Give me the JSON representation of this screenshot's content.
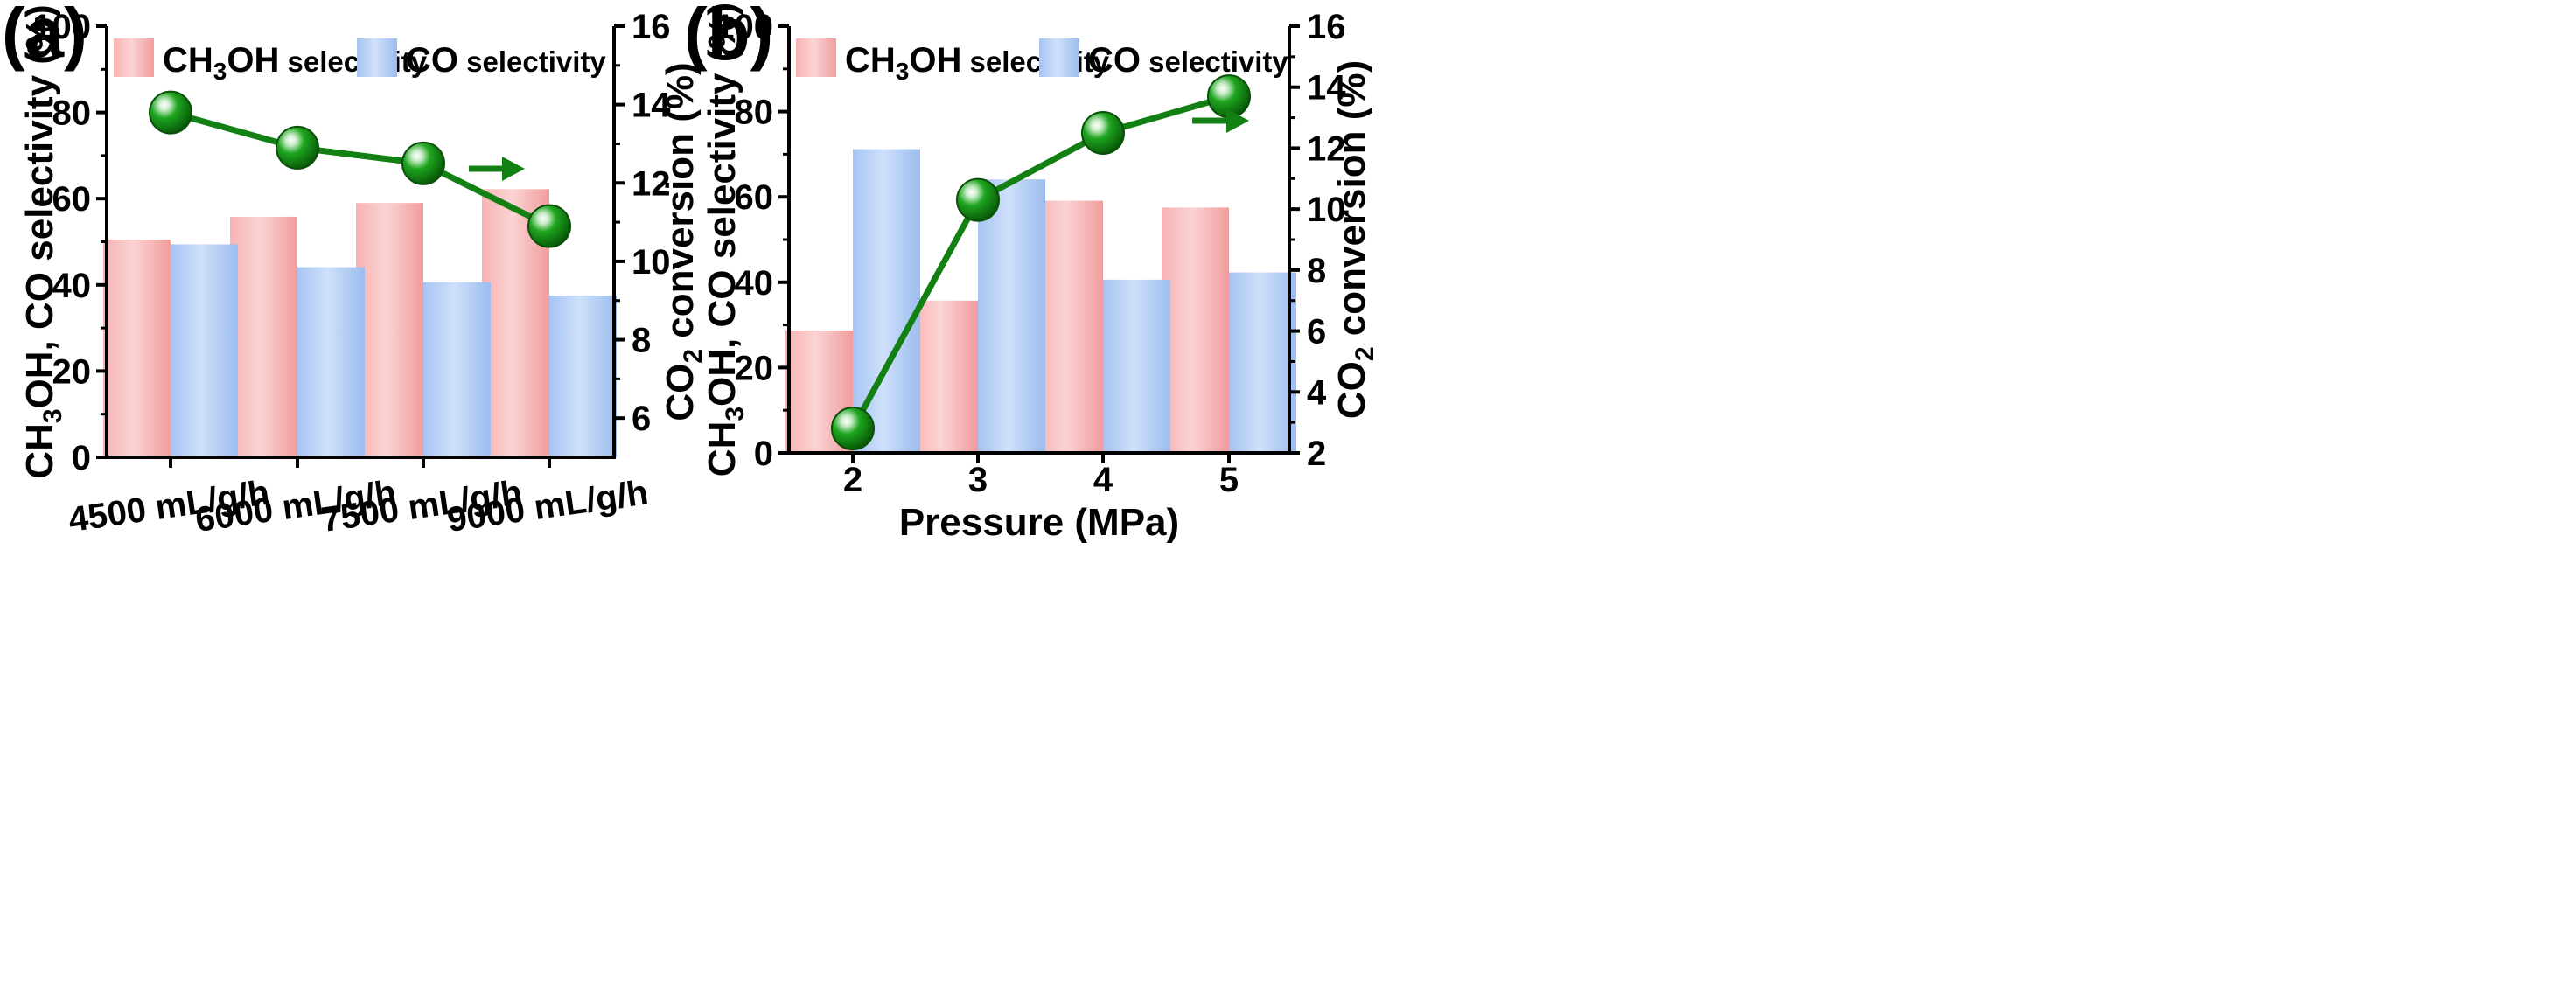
{
  "chart_data": [
    {
      "type": "bar",
      "panel_label": "(a)",
      "categories": [
        "4500 mL/g/h",
        "6000 mL/g/h",
        "7500 mL/g/h",
        "9000 mL/g/h"
      ],
      "series": [
        {
          "name": "CH3OH selectivity",
          "legend_main": "CH",
          "legend_sub": "3",
          "legend_rest": "OH",
          "legend_small": "selectivity",
          "axis": "left",
          "color": "#f4a3a3",
          "values": [
            50.5,
            55.8,
            59.0,
            62.2
          ]
        },
        {
          "name": "CO selectivity",
          "legend_main": "CO",
          "legend_small": "selectivity",
          "axis": "left",
          "color": "#a9c7f2",
          "values": [
            49.4,
            44.1,
            40.6,
            37.5
          ]
        }
      ],
      "line_series": {
        "name": "CO2 conversion",
        "axis": "right",
        "color": "#138013",
        "values": [
          13.8,
          12.9,
          12.5,
          10.9
        ]
      },
      "left_axis": {
        "label_parts": [
          "CH",
          "3",
          "OH, CO selectivity (%)"
        ],
        "ylim": [
          0,
          100
        ],
        "ticks": [
          0,
          20,
          40,
          60,
          80,
          100
        ]
      },
      "right_axis": {
        "label_parts": [
          "CO",
          "2",
          " conversion (%)"
        ],
        "ylim": [
          5,
          16
        ],
        "ticks": [
          6,
          8,
          10,
          12,
          14,
          16
        ]
      },
      "xlabel": "",
      "arrow": "right"
    },
    {
      "type": "bar",
      "panel_label": "(b)",
      "categories": [
        "2",
        "3",
        "4",
        "5"
      ],
      "series": [
        {
          "name": "CH3OH selectivity",
          "legend_main": "CH",
          "legend_sub": "3",
          "legend_rest": "OH",
          "legend_small": "selectivity",
          "axis": "left",
          "color": "#f4a3a3",
          "values": [
            28.7,
            35.7,
            59.1,
            57.5
          ]
        },
        {
          "name": "CO selectivity",
          "legend_main": "CO",
          "legend_small": "selectivity",
          "axis": "left",
          "color": "#a9c7f2",
          "values": [
            71.2,
            64.1,
            40.6,
            42.3
          ]
        }
      ],
      "line_series": {
        "name": "CO2 conversion",
        "axis": "right",
        "color": "#138013",
        "values": [
          2.8,
          10.3,
          12.5,
          13.7
        ]
      },
      "left_axis": {
        "label_parts": [
          "CH",
          "3",
          "OH, CO selectivity (%)"
        ],
        "ylim": [
          0,
          100
        ],
        "ticks": [
          0,
          20,
          40,
          60,
          80,
          100
        ]
      },
      "right_axis": {
        "label_parts": [
          "CO",
          "2",
          " conversion (%)"
        ],
        "ylim": [
          2,
          16
        ],
        "ticks": [
          2,
          4,
          6,
          8,
          10,
          12,
          14,
          16
        ]
      },
      "xlabel": "Pressure (MPa)",
      "arrow": "right"
    }
  ]
}
